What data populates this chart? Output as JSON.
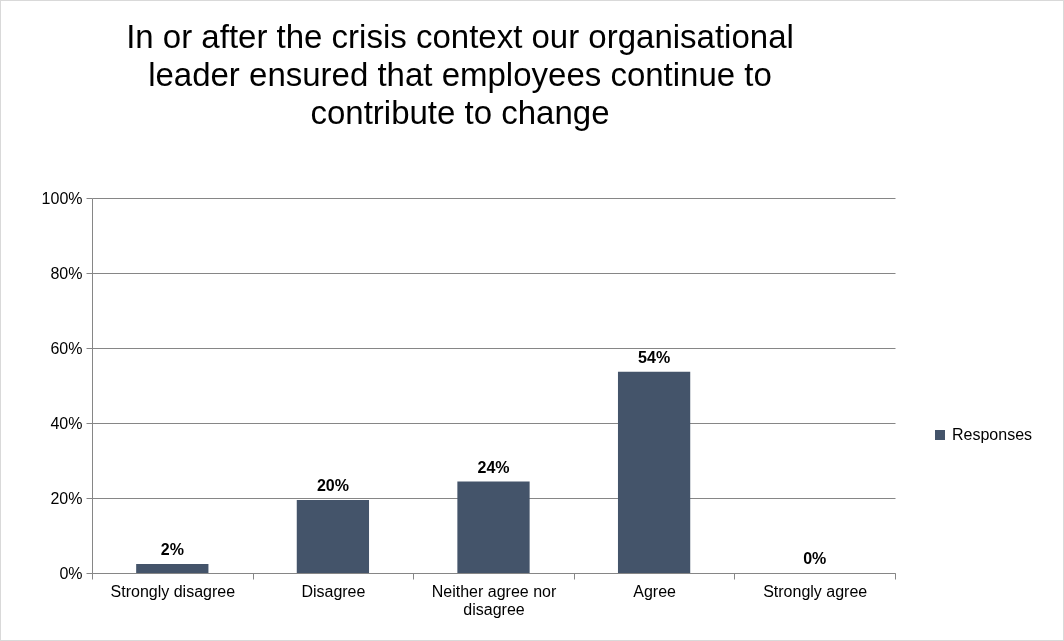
{
  "chart_data": {
    "type": "bar",
    "title": "In or after the crisis context our organisational leader ensured that employees continue to contribute to change",
    "categories": [
      "Strongly disagree",
      "Disagree",
      "Neither agree nor disagree",
      "Agree",
      "Strongly agree"
    ],
    "series": [
      {
        "name": "Responses",
        "color": "#44546a",
        "values": [
          2.4,
          19.5,
          24.4,
          53.7,
          0
        ],
        "value_labels": [
          "2%",
          "20%",
          "24%",
          "54%",
          "0%"
        ]
      }
    ],
    "ylim": [
      0,
      100
    ],
    "yticks": [
      {
        "value": 0,
        "label": "0%"
      },
      {
        "value": 20,
        "label": "20%"
      },
      {
        "value": 40,
        "label": "40%"
      },
      {
        "value": 60,
        "label": "60%"
      },
      {
        "value": 80,
        "label": "80%"
      },
      {
        "value": 100,
        "label": "100%"
      }
    ],
    "grid": "y",
    "legend": "right"
  }
}
